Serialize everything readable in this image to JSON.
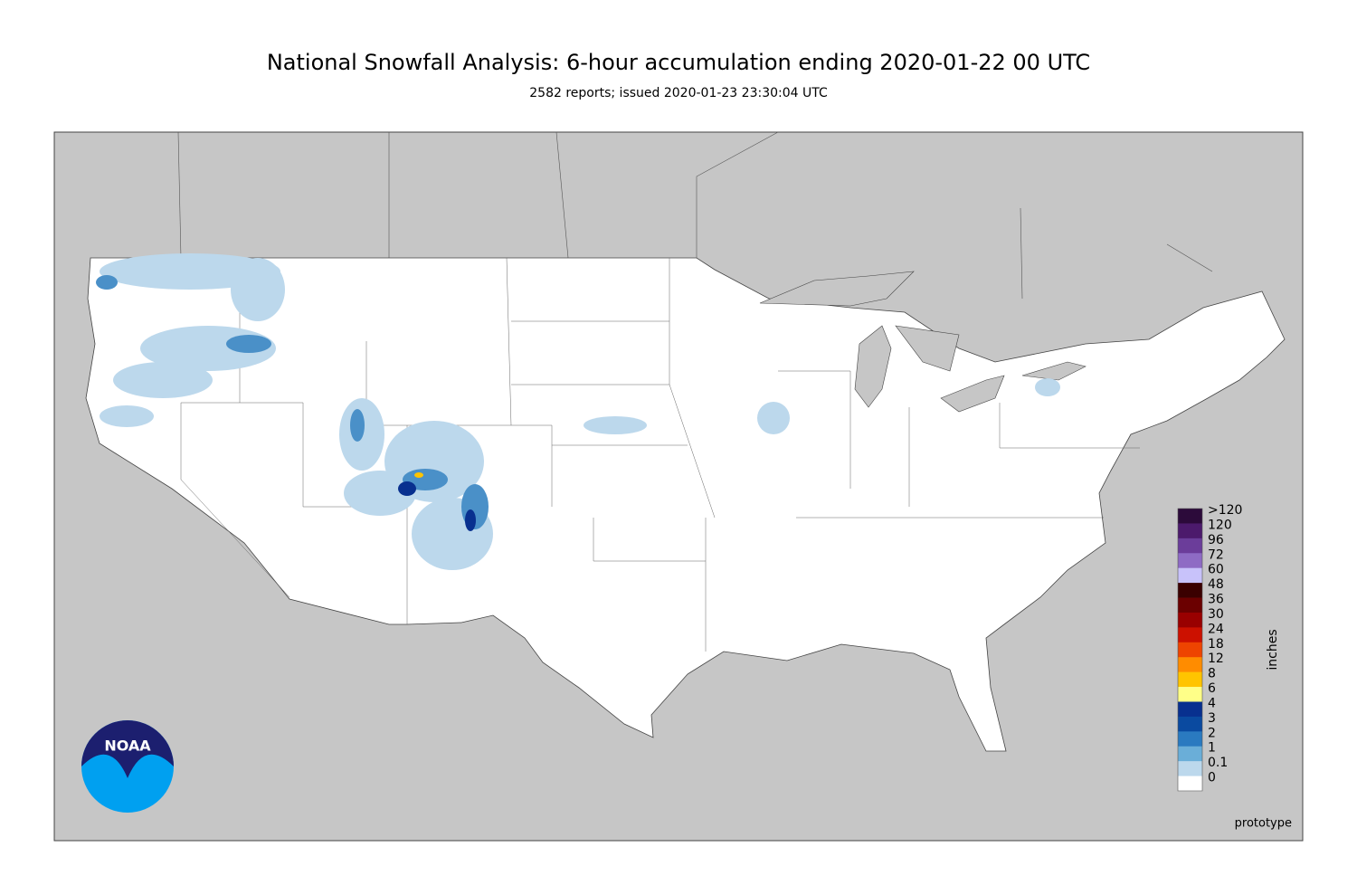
{
  "header": {
    "title": "National Snowfall Analysis: 6-hour accumulation ending 2020-01-22 00 UTC",
    "subtitle": "2582 reports; issued 2020-01-23 23:30:04 UTC"
  },
  "legend": {
    "unit": "inches",
    "levels": [
      {
        "label": ">120",
        "color": "#2c0a3a"
      },
      {
        "label": "120",
        "color": "#4c1a6c"
      },
      {
        "label": "96",
        "color": "#6b3d9a"
      },
      {
        "label": "72",
        "color": "#8e6bc4"
      },
      {
        "label": "60",
        "color": "#c8c2fa"
      },
      {
        "label": "48",
        "color": "#3a0000"
      },
      {
        "label": "36",
        "color": "#6b0000"
      },
      {
        "label": "30",
        "color": "#990000"
      },
      {
        "label": "24",
        "color": "#cc1100"
      },
      {
        "label": "18",
        "color": "#ee4400"
      },
      {
        "label": "12",
        "color": "#ff8c00"
      },
      {
        "label": "8",
        "color": "#ffc400"
      },
      {
        "label": "6",
        "color": "#ffff88"
      },
      {
        "label": "4",
        "color": "#08308f"
      },
      {
        "label": "3",
        "color": "#0a4aa0"
      },
      {
        "label": "2",
        "color": "#2a7ac0"
      },
      {
        "label": "1",
        "color": "#6aaed8"
      },
      {
        "label": "0.1",
        "color": "#bcd8ec"
      },
      {
        "label": "0",
        "color": "#ffffff"
      }
    ]
  },
  "footer": {
    "note": "prototype",
    "logo": "NOAA"
  }
}
